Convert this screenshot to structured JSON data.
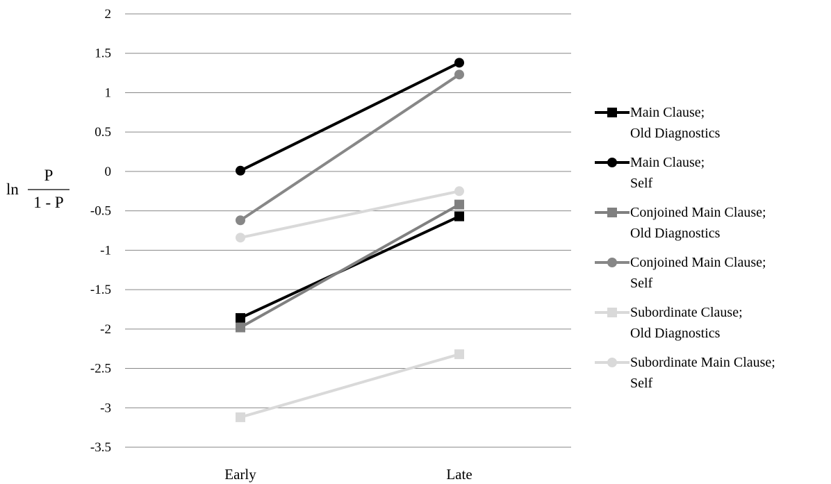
{
  "chart_data": {
    "type": "line",
    "title": "",
    "xlabel": "",
    "ylabel": {
      "prefix": "ln",
      "numerator": "P",
      "denominator": "1 - P"
    },
    "categories": [
      "Early",
      "Late"
    ],
    "ylim": [
      -3.5,
      2
    ],
    "yticks": [
      2,
      1.5,
      1,
      0.5,
      0,
      -0.5,
      -1,
      -1.5,
      -2,
      -2.5,
      -3,
      -3.5
    ],
    "ytick_labels": [
      "2",
      "1.5",
      "1",
      "0.5",
      "0",
      "-0.5",
      "-1",
      "-1.5",
      "-2",
      "-2.5",
      "-3",
      "-3.5"
    ],
    "grid": "horizontal",
    "legend_position": "right",
    "series": [
      {
        "name": [
          "Main Clause;",
          "Old Diagnostics"
        ],
        "values": [
          -1.86,
          -0.57
        ],
        "color": "#000000",
        "marker": "square"
      },
      {
        "name": [
          "Main Clause;",
          "Self"
        ],
        "values": [
          0.01,
          1.38
        ],
        "color": "#000000",
        "marker": "circle"
      },
      {
        "name": [
          "Conjoined Main Clause;",
          "Old Diagnostics"
        ],
        "values": [
          -1.98,
          -0.42
        ],
        "color": "#808080",
        "marker": "square"
      },
      {
        "name": [
          "Conjoined Main Clause;",
          "Self"
        ],
        "values": [
          -0.62,
          1.23
        ],
        "color": "#878787",
        "marker": "circle"
      },
      {
        "name": [
          "Subordinate Clause;",
          "Old Diagnostics"
        ],
        "values": [
          -3.12,
          -2.32
        ],
        "color": "#d9d9d9",
        "marker": "square"
      },
      {
        "name": [
          "Subordinate Main Clause;",
          "Self"
        ],
        "values": [
          -0.84,
          -0.25
        ],
        "color": "#d9d9d9",
        "marker": "circle"
      }
    ]
  }
}
